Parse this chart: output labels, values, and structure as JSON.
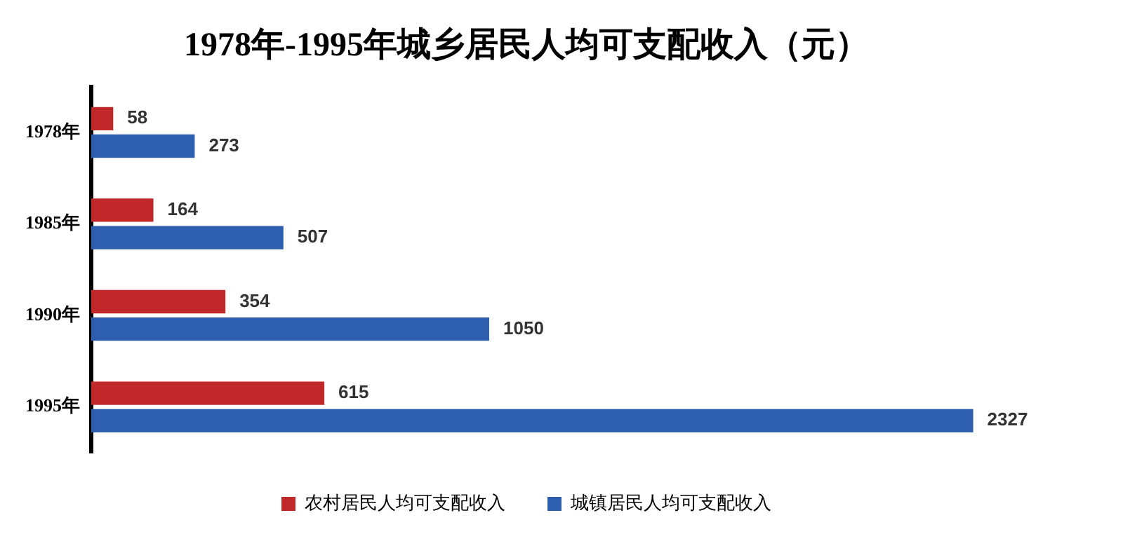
{
  "chart_data": {
    "type": "bar",
    "orientation": "horizontal",
    "title": "1978年-1995年城乡居民人均可支配收入（元）",
    "categories": [
      "1978年",
      "1985年",
      "1990年",
      "1995年"
    ],
    "series": [
      {
        "name": "农村居民人均可支配收入",
        "color": "#c0282a",
        "values": [
          58,
          164,
          354,
          615
        ]
      },
      {
        "name": "城镇居民人均可支配收入",
        "color": "#2e5fae",
        "values": [
          273,
          507,
          1050,
          2327
        ]
      }
    ],
    "data_labels": true,
    "grid": false,
    "legend": "bottom",
    "tick_labels": "y"
  }
}
